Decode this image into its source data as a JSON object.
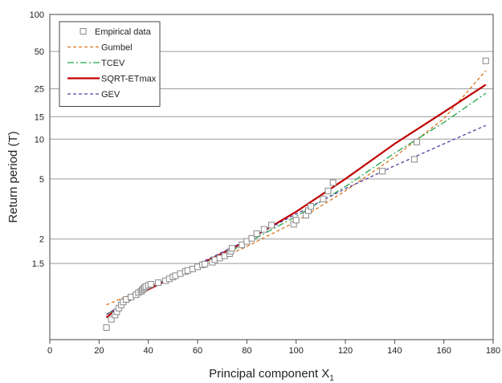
{
  "chart_data": {
    "type": "line",
    "xlabel": "Principal component X",
    "xlabel_sub": "1",
    "ylabel": "Return period (T)",
    "xlim": [
      0,
      180
    ],
    "x_ticks": [
      0,
      20,
      40,
      60,
      80,
      100,
      120,
      140,
      160,
      180
    ],
    "y_scale": "gumbel-reduced-variate",
    "y_ticks": [
      1.5,
      2,
      5,
      10,
      15,
      25,
      50,
      100
    ],
    "grid": "horizontal",
    "legend_position": "top-left",
    "series": [
      {
        "name": "Empirical data",
        "kind": "markers",
        "marker": "open-square",
        "color": "#888888",
        "x": [
          23,
          25,
          26.5,
          27.2,
          28,
          29,
          29.8,
          31,
          33,
          35,
          36,
          37,
          37.5,
          38,
          38.5,
          39,
          40,
          41,
          44,
          47,
          48.5,
          50,
          51,
          53,
          55,
          56,
          58,
          60,
          62,
          63,
          66,
          67,
          69,
          71,
          73,
          73.5,
          74,
          78,
          80,
          82,
          84,
          87,
          90,
          99,
          100,
          104,
          105,
          106,
          111,
          113,
          115,
          135,
          148,
          149,
          177
        ],
        "y": [
          1.026,
          1.045,
          1.058,
          1.07,
          1.085,
          1.1,
          1.115,
          1.13,
          1.145,
          1.16,
          1.175,
          1.185,
          1.195,
          1.205,
          1.215,
          1.225,
          1.235,
          1.245,
          1.26,
          1.28,
          1.3,
          1.32,
          1.335,
          1.36,
          1.385,
          1.4,
          1.42,
          1.45,
          1.48,
          1.49,
          1.52,
          1.56,
          1.59,
          1.63,
          1.67,
          1.72,
          1.78,
          1.86,
          1.94,
          2.02,
          2.15,
          2.28,
          2.42,
          2.45,
          2.6,
          2.8,
          3.0,
          3.2,
          3.6,
          4.1,
          4.7,
          5.7,
          7.0,
          9.5,
          42
        ]
      },
      {
        "name": "Gumbel",
        "kind": "line",
        "style": "dashed",
        "color": "#d9741f",
        "x": [
          23,
          40,
          60,
          80,
          100,
          120,
          140,
          160,
          177
        ],
        "y": [
          1.1,
          1.22,
          1.43,
          1.82,
          2.55,
          4.1,
          7.3,
          14.5,
          35
        ]
      },
      {
        "name": "TCEV",
        "kind": "line",
        "style": "dash-dot",
        "color": "#22a64a",
        "x": [
          23,
          40,
          60,
          80,
          100,
          120,
          140,
          160,
          177
        ],
        "y": [
          1.06,
          1.2,
          1.45,
          1.9,
          2.75,
          4.4,
          7.8,
          13.5,
          23
        ]
      },
      {
        "name": "SQRT-ETmax",
        "kind": "line",
        "style": "solid",
        "color": "#c00000",
        "x": [
          23,
          30,
          40,
          60,
          80,
          100,
          120,
          140,
          160,
          177
        ],
        "y": [
          1.05,
          1.11,
          1.2,
          1.47,
          1.95,
          2.95,
          5.0,
          9.2,
          16.3,
          27
        ]
      },
      {
        "name": "GEV",
        "kind": "line",
        "style": "dashed",
        "color": "#5b3fa3",
        "x": [
          23,
          40,
          60,
          80,
          100,
          120,
          140,
          160,
          177
        ],
        "y": [
          1.06,
          1.21,
          1.49,
          1.97,
          2.85,
          4.25,
          6.25,
          9.2,
          12.8
        ]
      }
    ]
  }
}
